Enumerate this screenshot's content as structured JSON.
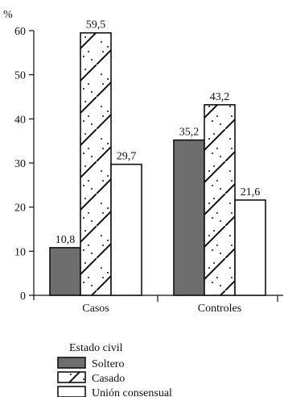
{
  "chart_data": {
    "type": "bar",
    "unit_label": "%",
    "categories": [
      "Casos",
      "Controles"
    ],
    "series": [
      {
        "name": "Soltero",
        "values": [
          10.8,
          35.2
        ],
        "labels": [
          "10,8",
          "35,2"
        ],
        "color": "#6e6e6e",
        "pattern": "solid"
      },
      {
        "name": "Casado",
        "values": [
          59.5,
          43.2
        ],
        "labels": [
          "59,5",
          "43,2"
        ],
        "color": "#ffffff",
        "pattern": "diagonal-dotted"
      },
      {
        "name": "Unión consensual",
        "values": [
          29.7,
          21.6
        ],
        "labels": [
          "29,7",
          "21,6"
        ],
        "color": "#ffffff",
        "pattern": "plain"
      }
    ],
    "ylim": [
      0,
      60
    ],
    "yticks": [
      0,
      10,
      20,
      30,
      40,
      50,
      60
    ],
    "legend_title": "Estado civil",
    "legend_position": "bottom-left",
    "grid": false
  }
}
